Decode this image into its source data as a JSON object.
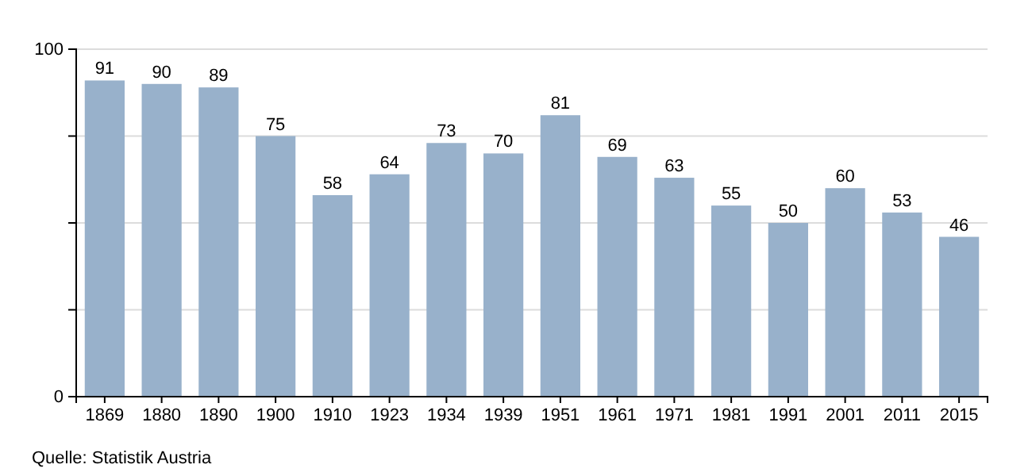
{
  "chart_data": {
    "type": "bar",
    "categories": [
      "1869",
      "1880",
      "1890",
      "1900",
      "1910",
      "1923",
      "1934",
      "1939",
      "1951",
      "1961",
      "1971",
      "1981",
      "1991",
      "2001",
      "2011",
      "2015"
    ],
    "values": [
      91,
      90,
      89,
      75,
      58,
      64,
      73,
      70,
      81,
      69,
      63,
      55,
      50,
      60,
      53,
      46
    ],
    "color": "#98b1cb",
    "ylim": [
      0,
      100
    ],
    "yticks": [
      0,
      {
        "value": 25,
        "label": null
      },
      {
        "value": 50,
        "label": null
      },
      {
        "value": 75,
        "label": null
      },
      100
    ],
    "grid": "y",
    "data_labels": true,
    "annotations": [
      "Quelle: Statistik Austria"
    ]
  }
}
